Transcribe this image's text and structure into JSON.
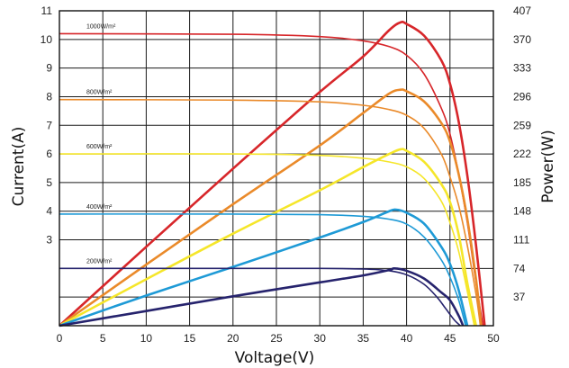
{
  "chart_data": {
    "type": "line",
    "xlabel": "Voltage(V)",
    "ylabel_left": "Current(A)",
    "ylabel_right": "Power(W)",
    "xlim": [
      0,
      50
    ],
    "ylim_left": [
      0,
      11
    ],
    "ylim_right": [
      0,
      407
    ],
    "x_ticks": [
      "0",
      "5",
      "10",
      "15",
      "20",
      "25",
      "30",
      "35",
      "40",
      "45",
      "50"
    ],
    "y_left_ticks": [
      {
        "value": 3,
        "label": "3"
      },
      {
        "value": 4,
        "label": "4"
      },
      {
        "value": 5,
        "label": "5"
      },
      {
        "value": 6,
        "label": "6"
      },
      {
        "value": 7,
        "label": "7"
      },
      {
        "value": 8,
        "label": "8"
      },
      {
        "value": 9,
        "label": "9"
      },
      {
        "value": 10,
        "label": "10"
      },
      {
        "value": 11,
        "label": "11"
      }
    ],
    "y_right_ticks": [
      {
        "value": 37,
        "label": "37"
      },
      {
        "value": 74,
        "label": "74"
      },
      {
        "value": 111,
        "label": "111"
      },
      {
        "value": 148,
        "label": "148"
      },
      {
        "value": 185,
        "label": "185"
      },
      {
        "value": 222,
        "label": "222"
      },
      {
        "value": 259,
        "label": "259"
      },
      {
        "value": 296,
        "label": "296"
      },
      {
        "value": 333,
        "label": "333"
      },
      {
        "value": 370,
        "label": "370"
      },
      {
        "value": 407,
        "label": "407"
      }
    ],
    "grid": true,
    "series": [
      {
        "name": "1000W/m²",
        "color": "#d7262a",
        "iv": [
          [
            0,
            10.2
          ],
          [
            20,
            10.18
          ],
          [
            30,
            10.1
          ],
          [
            35,
            9.95
          ],
          [
            38,
            9.75
          ],
          [
            40,
            9.45
          ],
          [
            42,
            8.8
          ],
          [
            44,
            7.6
          ],
          [
            45,
            6.7
          ],
          [
            46,
            5.3
          ],
          [
            47,
            3.6
          ],
          [
            48,
            1.5
          ],
          [
            48.8,
            0
          ]
        ],
        "pv": [
          [
            0,
            0
          ],
          [
            10,
            102
          ],
          [
            20,
            203
          ],
          [
            30,
            302
          ],
          [
            35,
            348
          ],
          [
            38,
            382
          ],
          [
            39.3,
            392
          ],
          [
            40,
            390
          ],
          [
            42,
            375
          ],
          [
            44,
            343
          ],
          [
            45,
            313
          ],
          [
            46,
            264
          ],
          [
            47,
            194
          ],
          [
            48,
            104
          ],
          [
            49,
            0
          ]
        ]
      },
      {
        "name": "800W/m²",
        "color": "#ea8a2a",
        "iv": [
          [
            0,
            7.9
          ],
          [
            20,
            7.88
          ],
          [
            30,
            7.82
          ],
          [
            35,
            7.7
          ],
          [
            38,
            7.55
          ],
          [
            40,
            7.35
          ],
          [
            42,
            6.9
          ],
          [
            44,
            6.0
          ],
          [
            45,
            5.2
          ],
          [
            46,
            4.2
          ],
          [
            47,
            2.8
          ],
          [
            48,
            1.1
          ],
          [
            48.5,
            0
          ]
        ],
        "pv": [
          [
            0,
            0
          ],
          [
            10,
            79
          ],
          [
            20,
            157
          ],
          [
            30,
            233
          ],
          [
            35,
            275
          ],
          [
            38,
            300
          ],
          [
            39.3,
            305
          ],
          [
            40,
            303
          ],
          [
            42,
            290
          ],
          [
            44,
            262
          ],
          [
            45,
            238
          ],
          [
            46,
            196
          ],
          [
            47,
            138
          ],
          [
            48,
            60
          ],
          [
            48.6,
            0
          ]
        ]
      },
      {
        "name": "600W/m²",
        "color": "#f5e62a",
        "iv": [
          [
            0,
            6.0
          ],
          [
            20,
            6.0
          ],
          [
            30,
            5.95
          ],
          [
            35,
            5.85
          ],
          [
            38,
            5.72
          ],
          [
            40,
            5.55
          ],
          [
            42,
            5.15
          ],
          [
            44,
            4.35
          ],
          [
            45,
            3.6
          ],
          [
            46,
            2.6
          ],
          [
            47,
            1.2
          ],
          [
            47.8,
            0
          ]
        ],
        "pv": [
          [
            0,
            0
          ],
          [
            10,
            60
          ],
          [
            20,
            119
          ],
          [
            30,
            175
          ],
          [
            35,
            205
          ],
          [
            38,
            222
          ],
          [
            39.3,
            228
          ],
          [
            40,
            226
          ],
          [
            42,
            212
          ],
          [
            44,
            183
          ],
          [
            45,
            160
          ],
          [
            46,
            118
          ],
          [
            47,
            55
          ],
          [
            48,
            0
          ]
        ]
      },
      {
        "name": "400W/m²",
        "color": "#1e9ad6",
        "iv": [
          [
            0,
            3.9
          ],
          [
            20,
            3.9
          ],
          [
            30,
            3.88
          ],
          [
            35,
            3.82
          ],
          [
            38,
            3.72
          ],
          [
            40,
            3.55
          ],
          [
            42,
            3.1
          ],
          [
            44,
            2.3
          ],
          [
            45,
            1.7
          ],
          [
            46,
            0.9
          ],
          [
            46.8,
            0
          ]
        ],
        "pv": [
          [
            0,
            0
          ],
          [
            10,
            39
          ],
          [
            20,
            76
          ],
          [
            30,
            114
          ],
          [
            35,
            134
          ],
          [
            38,
            148
          ],
          [
            38.8,
            150
          ],
          [
            40,
            146
          ],
          [
            42,
            132
          ],
          [
            44,
            102
          ],
          [
            45,
            80
          ],
          [
            46,
            46
          ],
          [
            47,
            0
          ]
        ]
      },
      {
        "name": "200W/m²",
        "color": "#26236d",
        "iv": [
          [
            0,
            2.0
          ],
          [
            20,
            2.0
          ],
          [
            30,
            2.0
          ],
          [
            35,
            1.98
          ],
          [
            38,
            1.92
          ],
          [
            40,
            1.78
          ],
          [
            42,
            1.45
          ],
          [
            43.5,
            1.0
          ],
          [
            44.5,
            0.6
          ],
          [
            45.5,
            0.2
          ],
          [
            46.2,
            0
          ]
        ],
        "pv": [
          [
            0,
            0
          ],
          [
            10,
            19
          ],
          [
            20,
            38
          ],
          [
            30,
            56
          ],
          [
            35,
            65
          ],
          [
            38,
            72
          ],
          [
            38.6,
            74
          ],
          [
            40,
            71
          ],
          [
            42,
            61
          ],
          [
            44,
            43
          ],
          [
            45,
            33
          ],
          [
            46,
            13
          ],
          [
            46.5,
            0
          ]
        ]
      }
    ]
  }
}
